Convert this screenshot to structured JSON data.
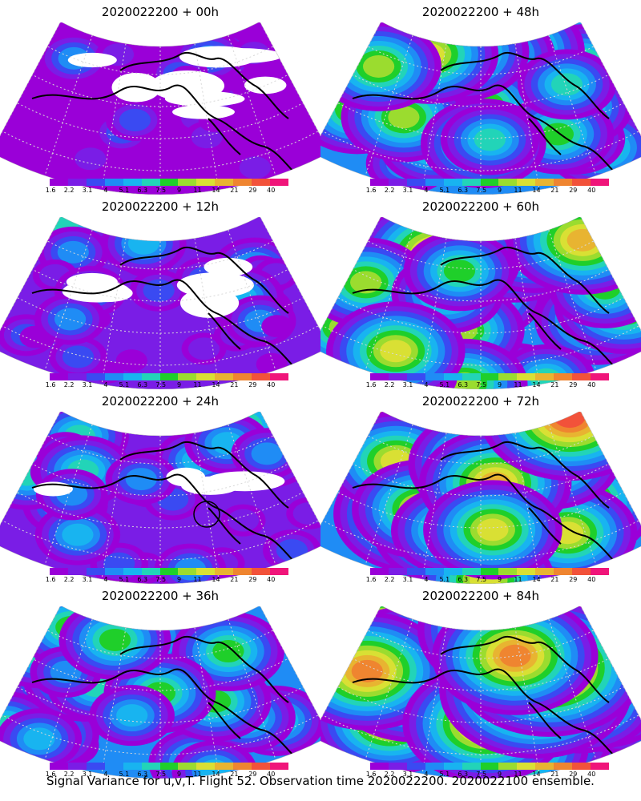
{
  "panels": [
    {
      "title": "2020022200 + 00h",
      "level": 0,
      "marker": "none"
    },
    {
      "title": "2020022200 + 48h",
      "level": 4,
      "marker": "none"
    },
    {
      "title": "2020022200 + 12h",
      "level": 1,
      "marker": "none"
    },
    {
      "title": "2020022200 + 60h",
      "level": 5,
      "marker": "none"
    },
    {
      "title": "2020022200 + 24h",
      "level": 2,
      "marker": "circle"
    },
    {
      "title": "2020022200 + 72h",
      "level": 6,
      "marker": "none"
    },
    {
      "title": "2020022200 + 36h",
      "level": 3,
      "marker": "none"
    },
    {
      "title": "2020022200 + 84h",
      "level": 7,
      "marker": "none"
    }
  ],
  "colorbar": {
    "labels": [
      "1.6",
      "2.2",
      "3.1",
      "4",
      "5.1",
      "6.3",
      "7.5",
      "9",
      "11",
      "14",
      "21",
      "29",
      "40"
    ],
    "colors": [
      "#9a00d8",
      "#7a1de6",
      "#3a4af2",
      "#1f8cf5",
      "#18b4f0",
      "#22d4b8",
      "#1fcf2a",
      "#9bdc2f",
      "#d9e034",
      "#e8b431",
      "#ef8530",
      "#f2523a",
      "#f0157a"
    ]
  },
  "caption": "Signal Variance for u,v,T. Flight 52. Observation time 2020022200. 2020022100 ensemble."
}
